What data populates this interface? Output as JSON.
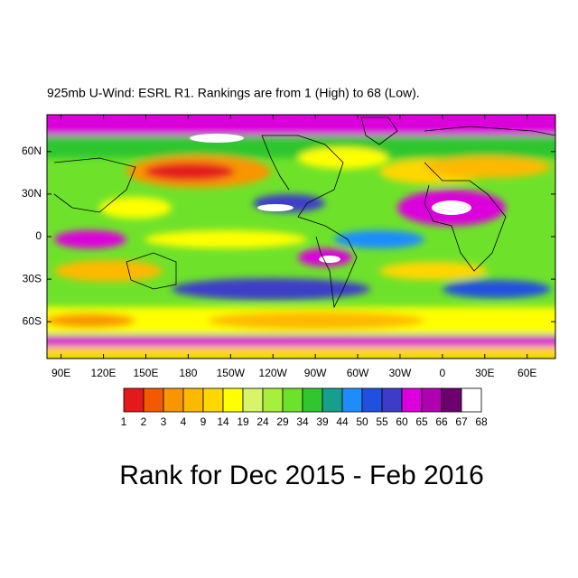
{
  "chart_data": {
    "type": "map",
    "title": "925mb U-Wind: ESRL R1. Rankings are from 1 (High) to 68 (Low).",
    "footer": "Rank for Dec 2015 - Feb 2016",
    "lonlim": [
      80,
      440
    ],
    "latlim": [
      -86,
      86
    ],
    "lon_ticks": [
      {
        "value": 90,
        "label": "90E"
      },
      {
        "value": 120,
        "label": "120E"
      },
      {
        "value": 150,
        "label": "150E"
      },
      {
        "value": 180,
        "label": "180"
      },
      {
        "value": 210,
        "label": "150W"
      },
      {
        "value": 240,
        "label": "120W"
      },
      {
        "value": 270,
        "label": "90W"
      },
      {
        "value": 300,
        "label": "60W"
      },
      {
        "value": 330,
        "label": "30W"
      },
      {
        "value": 360,
        "label": "0"
      },
      {
        "value": 390,
        "label": "30E"
      },
      {
        "value": 420,
        "label": "60E"
      }
    ],
    "lat_ticks": [
      {
        "value": 60,
        "label": "60N"
      },
      {
        "value": 30,
        "label": "30N"
      },
      0,
      {
        "value": -30,
        "label": "30S"
      },
      {
        "value": -60,
        "label": "60S"
      }
    ],
    "colorbar": {
      "levels": [
        1,
        2,
        3,
        4,
        9,
        14,
        19,
        24,
        29,
        34,
        39,
        44,
        50,
        55,
        60,
        65,
        66,
        67,
        68
      ],
      "colors": [
        "#e31a1c",
        "#f25a00",
        "#f99500",
        "#fdb900",
        "#ffd700",
        "#ffff00",
        "#d8f56a",
        "#a8ee3c",
        "#6ee22a",
        "#2fc62f",
        "#14a08c",
        "#1e8cff",
        "#2050e0",
        "#3c3cc8",
        "#dc00dc",
        "#b000b0",
        "#6e006e",
        "#ffffff"
      ]
    }
  }
}
